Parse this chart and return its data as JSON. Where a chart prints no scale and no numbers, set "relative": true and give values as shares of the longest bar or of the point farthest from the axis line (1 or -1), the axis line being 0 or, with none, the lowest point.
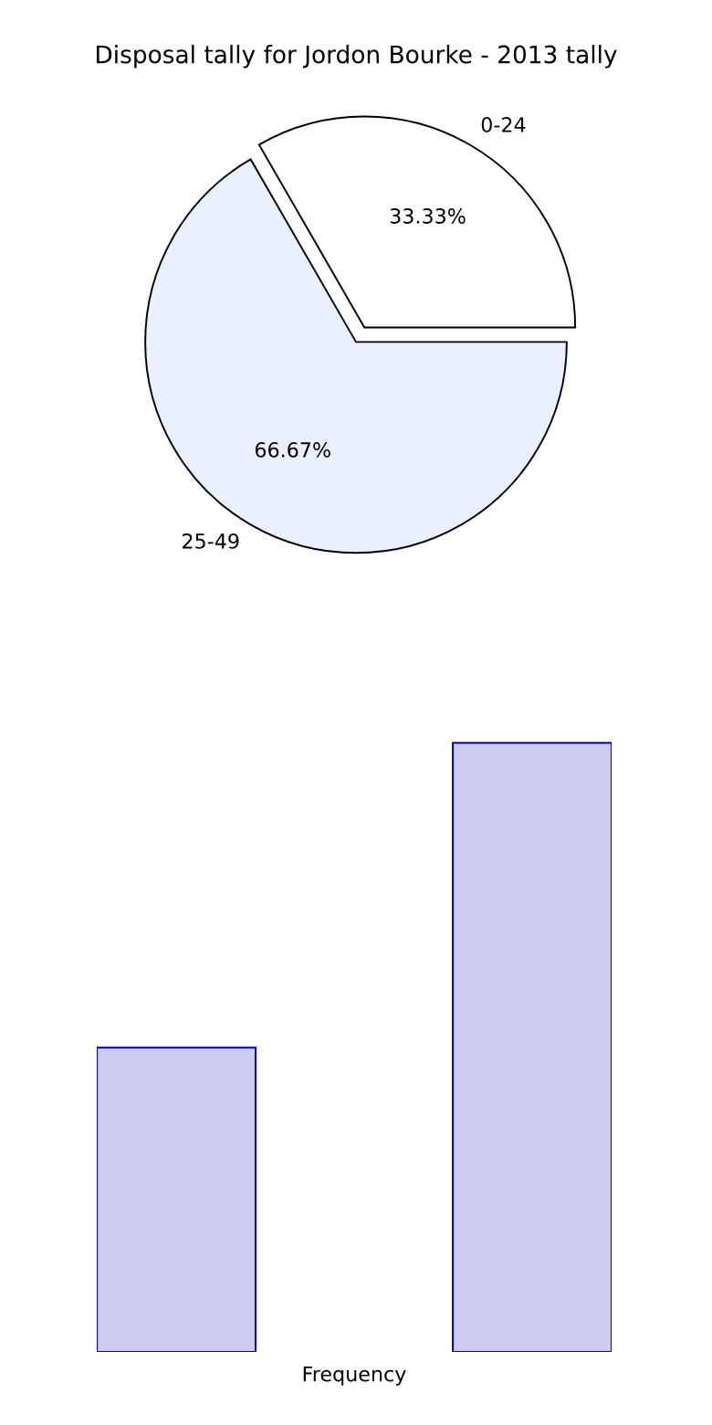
{
  "chart_data": [
    {
      "type": "pie",
      "title": "Disposal tally for Jordon Bourke - 2013 tally",
      "categories": [
        "0-24",
        "25-49"
      ],
      "values": [
        33.33,
        66.67
      ],
      "colors": [
        "#ffffff",
        "#eaf0ff"
      ],
      "value_labels": [
        "33.33%",
        "66.67%"
      ]
    },
    {
      "type": "bar",
      "categories": [
        null,
        null
      ],
      "values": [
        0.5,
        1
      ],
      "color": "#ccccee",
      "relative": true,
      "xlabel": "Frequency"
    }
  ]
}
